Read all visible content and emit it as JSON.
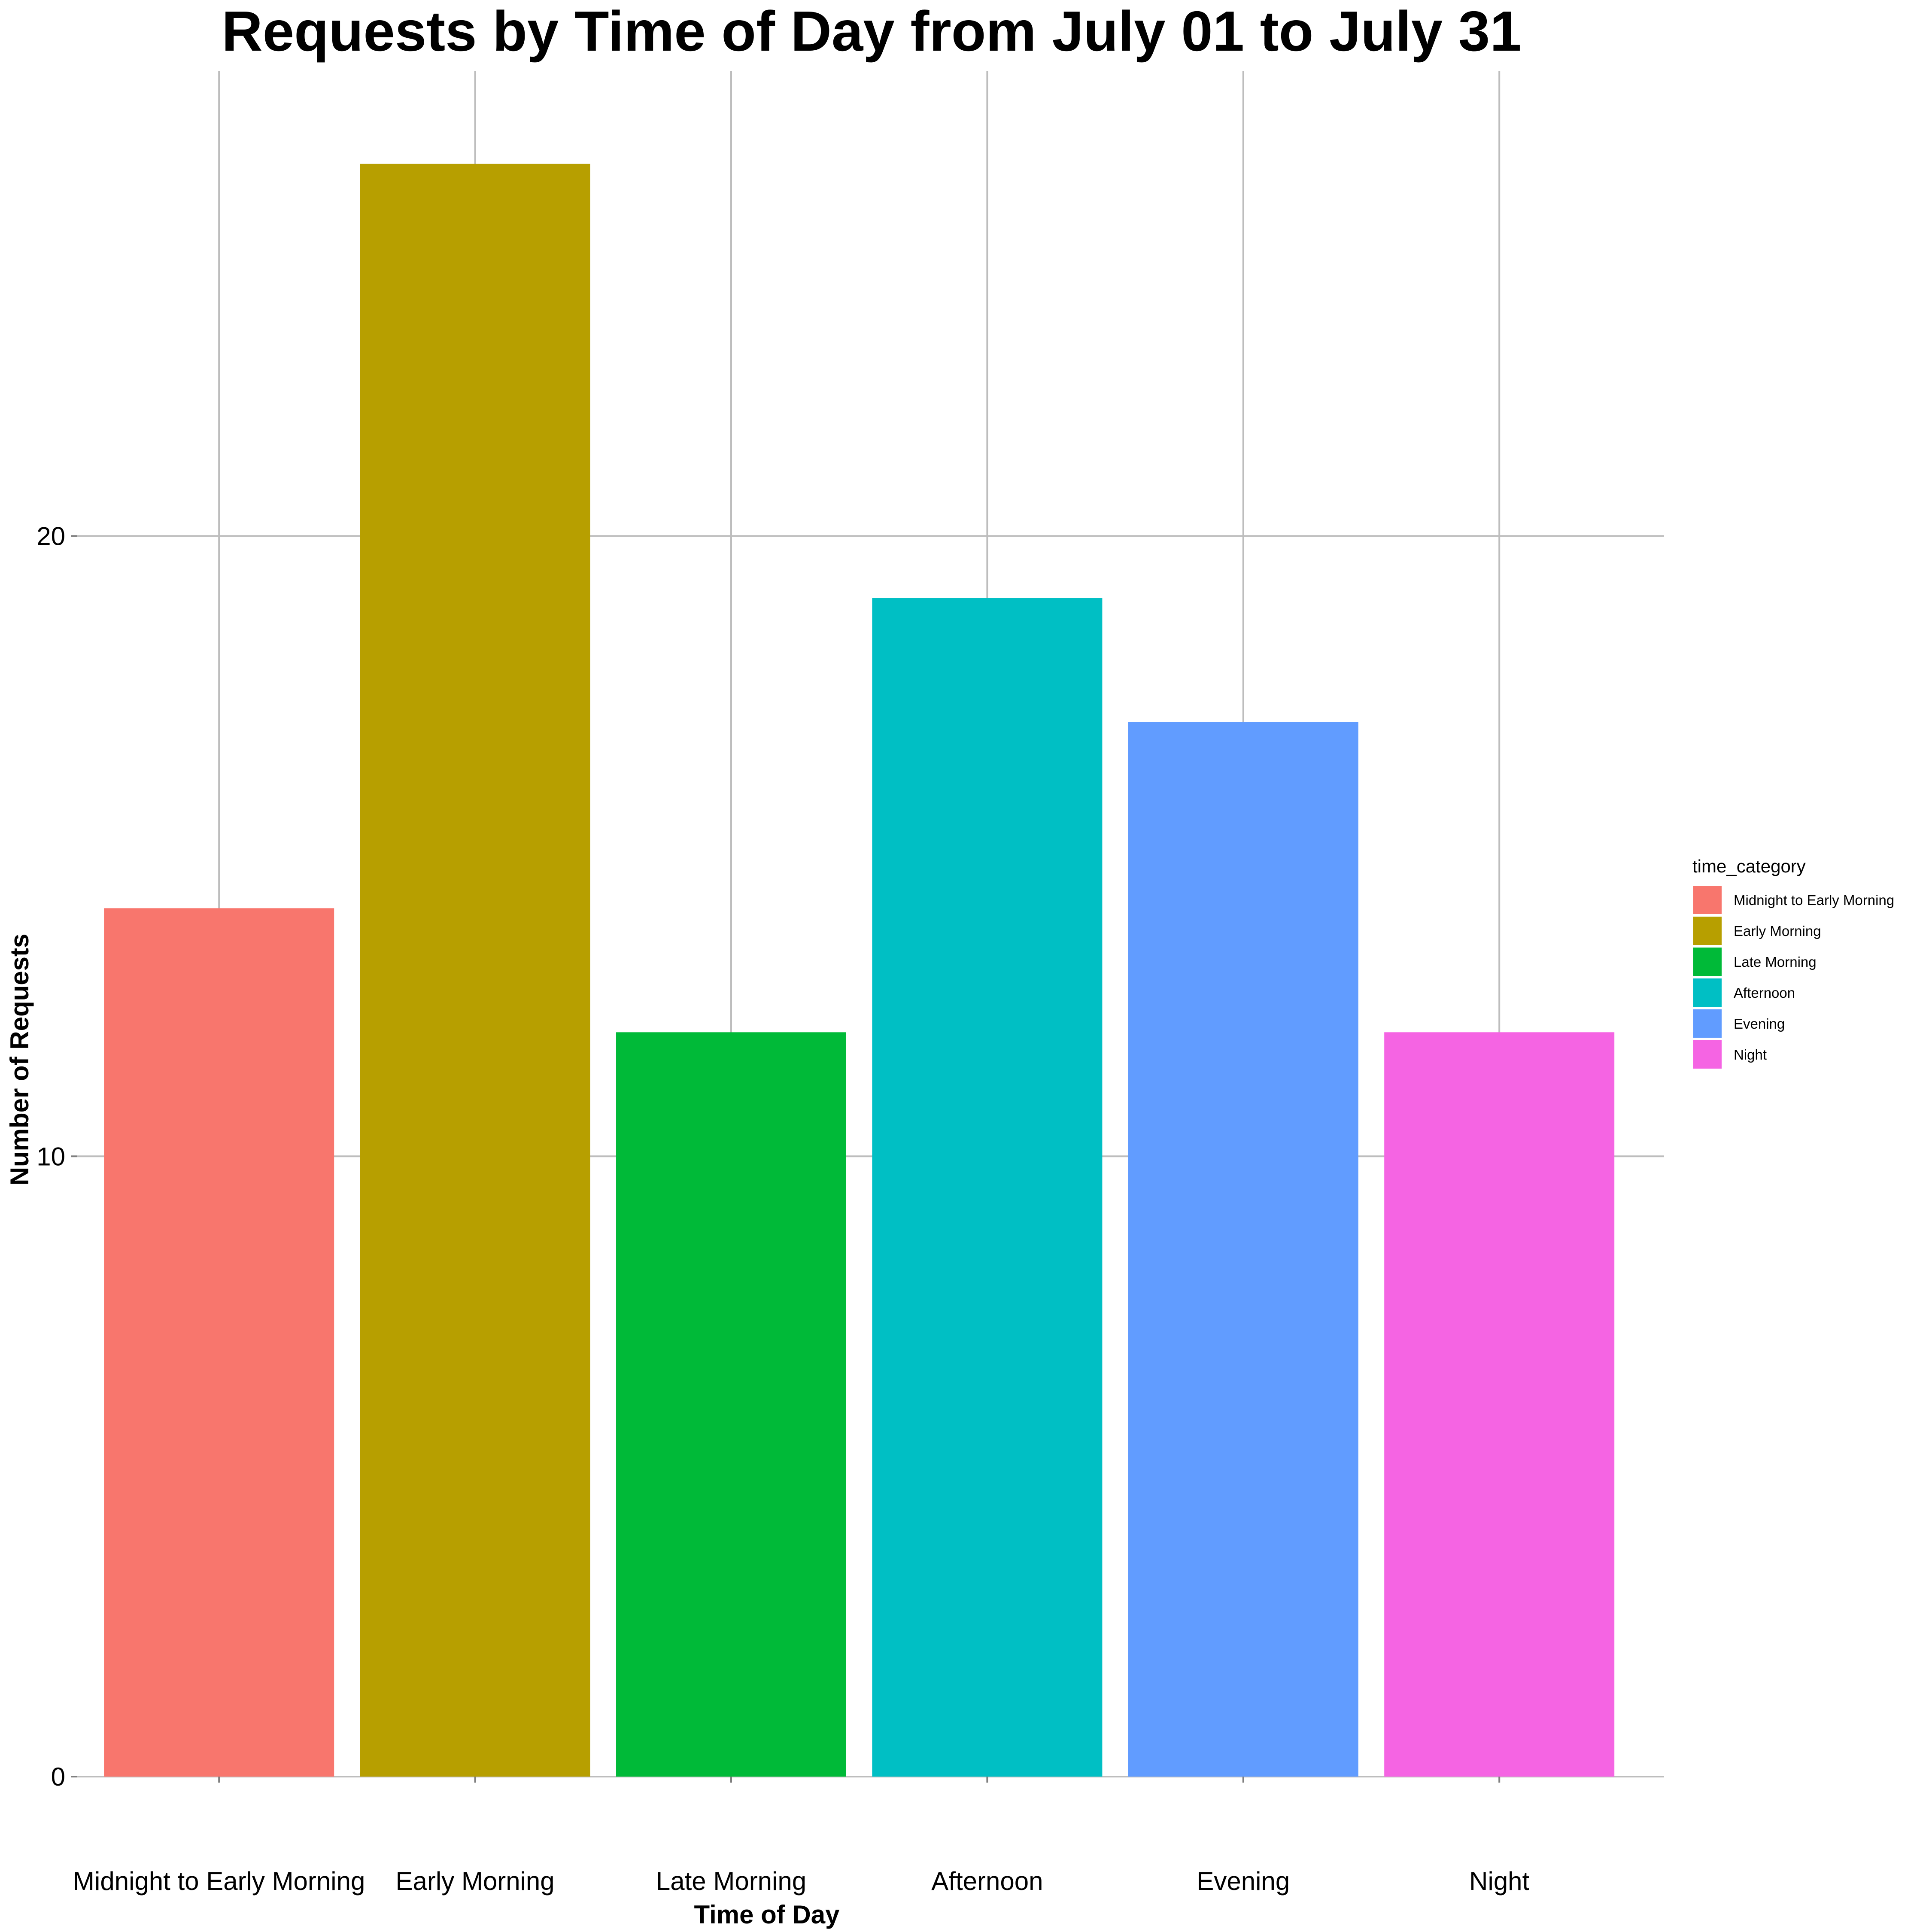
{
  "chart_data": {
    "type": "bar",
    "title": "Requests by Time of Day from July 01 to July 31",
    "xlabel": "Time of Day",
    "ylabel": "Number of Requests",
    "categories": [
      "Midnight to Early Morning",
      "Early Morning",
      "Late Morning",
      "Afternoon",
      "Evening",
      "Night"
    ],
    "values": [
      14,
      26,
      12,
      19,
      17,
      12
    ],
    "colors": [
      "#F8766D",
      "#B79F00",
      "#00BA38",
      "#00BFC4",
      "#619CFF",
      "#F564E3"
    ],
    "ylim": [
      0,
      27.5
    ],
    "yticks": [
      0,
      10,
      20
    ],
    "grid": true,
    "legend": {
      "title": "time_category",
      "placement": "right",
      "entries": [
        "Midnight to Early Morning",
        "Early Morning",
        "Late Morning",
        "Afternoon",
        "Evening",
        "Night"
      ]
    }
  }
}
